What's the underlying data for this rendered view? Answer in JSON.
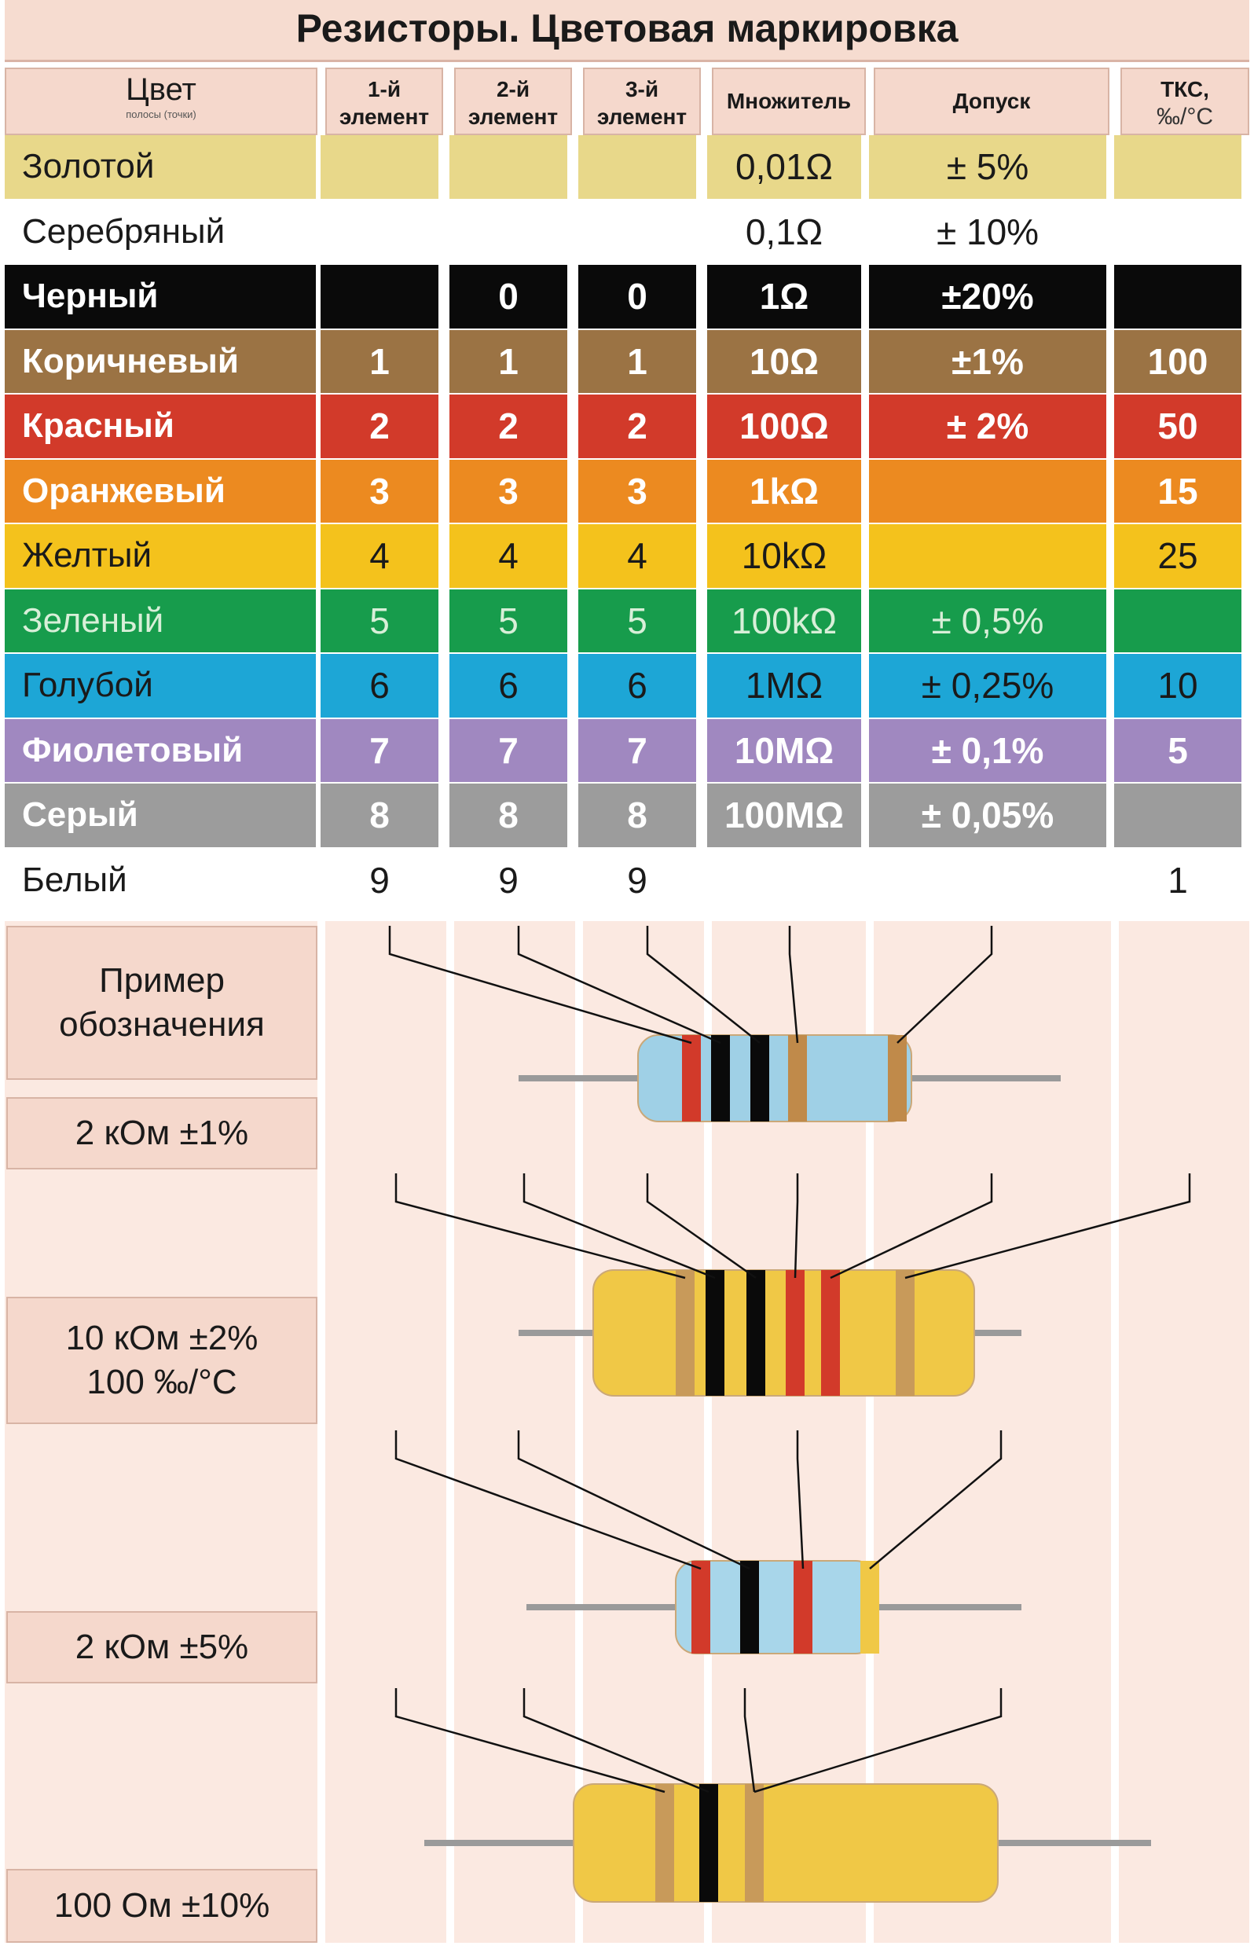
{
  "title": "Резисторы. Цветовая маркировка",
  "headers": {
    "color": "Цвет",
    "color_sub": "полосы (точки)",
    "el1_a": "1-й",
    "el1_b": "элемент",
    "el2_a": "2-й",
    "el2_b": "элемент",
    "el3_a": "3-й",
    "el3_b": "элемент",
    "multiplier": "Множитель",
    "tolerance": "Допуск",
    "tks_a": "ТКС,",
    "tks_b": "‰/°С"
  },
  "rows": [
    {
      "name": "Золотой",
      "bg": "#e8d88a",
      "fg": "#1a1a1a",
      "bold": false,
      "d1": "",
      "d2": "",
      "d3": "",
      "mult": "0,01Ω",
      "tol": "± 5%",
      "tks": ""
    },
    {
      "name": "Серебряный",
      "bg": "#ffffff",
      "fg": "#1a1a1a",
      "bold": false,
      "d1": "",
      "d2": "",
      "d3": "",
      "mult": "0,1Ω",
      "tol": "± 10%",
      "tks": ""
    },
    {
      "name": "Черный",
      "bg": "#0a0a0a",
      "fg": "#ffffff",
      "bold": true,
      "d1": "",
      "d2": "0",
      "d3": "0",
      "mult": "1Ω",
      "tol": "±20%",
      "tks": ""
    },
    {
      "name": "Коричневый",
      "bg": "#9b7344",
      "fg": "#ffffff",
      "bold": true,
      "d1": "1",
      "d2": "1",
      "d3": "1",
      "mult": "10Ω",
      "tol": "±1%",
      "tks": "100"
    },
    {
      "name": "Красный",
      "bg": "#d23a2a",
      "fg": "#ffffff",
      "bold": true,
      "d1": "2",
      "d2": "2",
      "d3": "2",
      "mult": "100Ω",
      "tol": "± 2%",
      "tks": "50"
    },
    {
      "name": "Оранжевый",
      "bg": "#ec8a20",
      "fg": "#ffffff",
      "bold": true,
      "d1": "3",
      "d2": "3",
      "d3": "3",
      "mult": "1kΩ",
      "tol": "",
      "tks": "15"
    },
    {
      "name": "Желтый",
      "bg": "#f4c21c",
      "fg": "#1a1a1a",
      "bold": false,
      "d1": "4",
      "d2": "4",
      "d3": "4",
      "mult": "10kΩ",
      "tol": "",
      "tks": "25"
    },
    {
      "name": "Зеленый",
      "bg": "#179c4c",
      "fg": "#d8efd8",
      "bold": false,
      "d1": "5",
      "d2": "5",
      "d3": "5",
      "mult": "100kΩ",
      "tol": "± 0,5%",
      "tks": ""
    },
    {
      "name": "Голубой",
      "bg": "#1da6d6",
      "fg": "#1a1a1a",
      "bold": false,
      "d1": "6",
      "d2": "6",
      "d3": "6",
      "mult": "1MΩ",
      "tol": "± 0,25%",
      "tks": "10"
    },
    {
      "name": "Фиолетовый",
      "bg": "#a088c0",
      "fg": "#ffffff",
      "bold": true,
      "d1": "7",
      "d2": "7",
      "d3": "7",
      "mult": "10MΩ",
      "tol": "± 0,1%",
      "tks": "5"
    },
    {
      "name": "Серый",
      "bg": "#9c9c9c",
      "fg": "#ffffff",
      "bold": true,
      "d1": "8",
      "d2": "8",
      "d3": "8",
      "mult": "100MΩ",
      "tol": "± 0,05%",
      "tks": ""
    },
    {
      "name": "Белый",
      "bg": "#ffffff",
      "fg": "#1a1a1a",
      "bold": false,
      "d1": "9",
      "d2": "9",
      "d3": "9",
      "mult": "",
      "tol": "",
      "tks": "1"
    }
  ],
  "example_heading_1": "Пример",
  "example_heading_2": "обозначения",
  "examples": [
    {
      "line1": "2 кОм ±1%",
      "line2": ""
    },
    {
      "line1": "10 кОм ±2%",
      "line2": "100 ‰/°С"
    },
    {
      "line1": "2 кОм ±5%",
      "line2": ""
    },
    {
      "line1": "100 Ом ±10%",
      "line2": ""
    }
  ],
  "resistors": [
    {
      "body": "#9fd0e6",
      "bands": [
        "#d23a2a",
        "#0a0a0a",
        "#0a0a0a",
        "#c08a4a",
        "#c08a4a"
      ]
    },
    {
      "body": "#f0c846",
      "bands": [
        "#c89a5a",
        "#0a0a0a",
        "#0a0a0a",
        "#d23a2a",
        "#d23a2a",
        "#c89a5a"
      ]
    },
    {
      "body": "#a8d6ea",
      "bands": [
        "#d23a2a",
        "#0a0a0a",
        "#d23a2a",
        "#f0c846"
      ]
    },
    {
      "body": "#f0c846",
      "bands": [
        "#c89a5a",
        "#0a0a0a",
        "#c89a5a"
      ]
    }
  ]
}
